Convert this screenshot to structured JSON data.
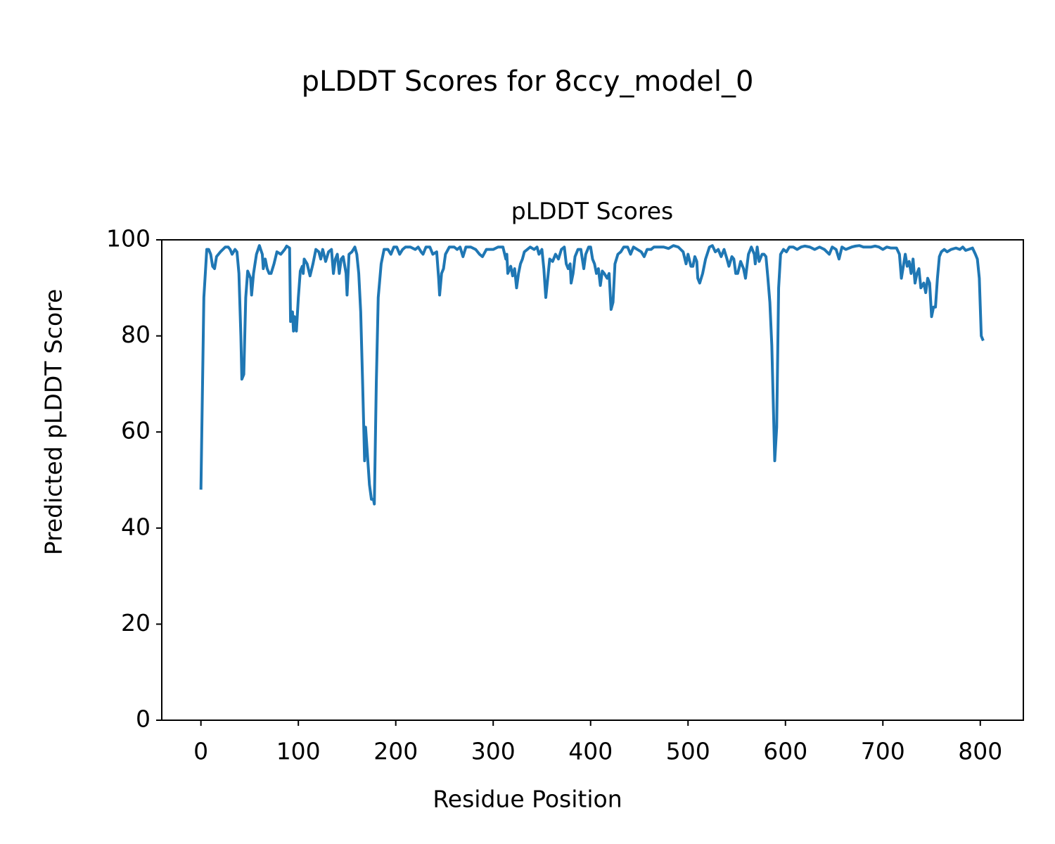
{
  "chart_data": {
    "type": "line",
    "title": "pLDDT Scores for 8ccy_model_0",
    "subtitle": "pLDDT Scores",
    "xlabel": "Residue Position",
    "ylabel": "Predicted pLDDT Score",
    "x": [
      0,
      3,
      6,
      8,
      10,
      12,
      14,
      16,
      20,
      25,
      28,
      30,
      32,
      35,
      37,
      39,
      41,
      42,
      44,
      46,
      48,
      51,
      52,
      54,
      57,
      60,
      63,
      64,
      66,
      68,
      70,
      72,
      75,
      78,
      82,
      86,
      88,
      91,
      92,
      94,
      95,
      96,
      98,
      100,
      102,
      104,
      105,
      106,
      109,
      112,
      115,
      118,
      121,
      123,
      125,
      128,
      131,
      134,
      136,
      138,
      140,
      142,
      144,
      146,
      149,
      150,
      152,
      155,
      158,
      160,
      162,
      164,
      166,
      168,
      169,
      171,
      173,
      175,
      177,
      178,
      180,
      182,
      185,
      188,
      192,
      195,
      198,
      201,
      204,
      207,
      210,
      215,
      220,
      223,
      226,
      228,
      231,
      235,
      238,
      242,
      244,
      245,
      247,
      249,
      251,
      255,
      260,
      263,
      266,
      269,
      272,
      277,
      282,
      286,
      289,
      293,
      300,
      305,
      310,
      313,
      314,
      315,
      318,
      320,
      322,
      324,
      326,
      328,
      330,
      332,
      335,
      338,
      342,
      345,
      347,
      350,
      352,
      354,
      356,
      358,
      361,
      364,
      367,
      370,
      373,
      375,
      377,
      379,
      380,
      382,
      384,
      387,
      390,
      393,
      395,
      398,
      400,
      402,
      404,
      406,
      408,
      410,
      412,
      414,
      417,
      419,
      421,
      423,
      425,
      428,
      431,
      434,
      438,
      441,
      444,
      448,
      452,
      455,
      458,
      462,
      465,
      470,
      475,
      480,
      485,
      490,
      495,
      498,
      500,
      503,
      505,
      507,
      509,
      510,
      512,
      515,
      518,
      522,
      525,
      528,
      531,
      534,
      537,
      540,
      542,
      545,
      547,
      549,
      551,
      554,
      557,
      559,
      562,
      565,
      568,
      569,
      571,
      573,
      576,
      578,
      580,
      582,
      584,
      586,
      588,
      589,
      591,
      593,
      595,
      598,
      601,
      604,
      608,
      612,
      616,
      620,
      625,
      630,
      635,
      640,
      645,
      648,
      652,
      655,
      658,
      662,
      668,
      672,
      676,
      680,
      684,
      688,
      692,
      696,
      700,
      704,
      708,
      714,
      717,
      719,
      721,
      723,
      725,
      727,
      729,
      731,
      733,
      735,
      737,
      739,
      742,
      744,
      746,
      748,
      750,
      752,
      754,
      756,
      758,
      760,
      763,
      766,
      770,
      775,
      779,
      782,
      785,
      788,
      792,
      795,
      797,
      799,
      801,
      803
    ],
    "series": [
      {
        "name": "pLDDT",
        "color": "#1f77b4",
        "values": [
          48,
          88,
          98,
          98,
          97,
          94.5,
          94,
          96.5,
          97.5,
          98.5,
          98.5,
          98,
          97,
          98,
          97.5,
          93,
          80,
          71,
          72,
          88,
          93.5,
          92,
          88.5,
          93,
          97,
          98.8,
          97,
          94,
          96,
          94,
          93,
          93,
          95,
          97.5,
          97,
          98,
          98.7,
          98.3,
          83,
          85,
          81,
          84,
          81,
          88,
          93.5,
          94.5,
          93,
          96,
          95,
          92.5,
          95,
          98,
          97.5,
          96,
          98,
          95.5,
          97.5,
          98,
          93,
          96,
          97,
          93,
          96,
          96.5,
          93,
          88.5,
          97,
          97.5,
          98.5,
          97,
          93,
          85,
          70,
          54,
          61,
          55,
          49,
          46,
          46,
          45,
          70,
          88,
          95,
          98,
          98,
          97,
          98.5,
          98.5,
          97,
          98,
          98.5,
          98.5,
          98,
          98.5,
          97.5,
          97,
          98.5,
          98.5,
          97,
          97.5,
          92,
          88.5,
          93,
          94,
          97,
          98.5,
          98.5,
          98,
          98.5,
          96.5,
          98.5,
          98.5,
          98,
          97,
          96.5,
          98,
          98,
          98.5,
          98.5,
          96,
          97,
          93,
          94.5,
          92.5,
          94,
          90,
          93,
          95,
          96,
          97.5,
          98,
          98.5,
          98,
          98.5,
          97,
          98,
          94,
          88,
          92,
          96,
          95.5,
          97,
          96,
          98,
          98.5,
          95,
          94,
          95,
          91,
          93,
          96.5,
          98,
          98,
          94,
          97,
          98.5,
          98.5,
          96,
          95,
          93,
          94,
          90.5,
          93.5,
          93,
          92,
          93,
          85.5,
          87,
          95,
          97,
          97.5,
          98.5,
          98.5,
          97,
          98.5,
          98,
          97.5,
          96.5,
          98,
          98,
          98.5,
          98.5,
          98.5,
          98.2,
          98.8,
          98.5,
          97.5,
          95,
          97,
          94.5,
          94.5,
          96.5,
          95.5,
          92,
          91,
          93,
          96,
          98.5,
          98.8,
          97.5,
          98,
          96.5,
          98,
          96,
          94.5,
          96.5,
          96,
          93,
          93,
          95.5,
          94,
          92,
          97,
          98.5,
          97,
          95,
          98.5,
          95.5,
          97,
          97,
          96.5,
          92,
          87,
          78,
          62,
          54,
          61,
          90,
          97,
          98,
          97.5,
          98.5,
          98.5,
          98,
          98.5,
          98.7,
          98.5,
          98,
          98.5,
          98,
          97,
          98.5,
          98,
          96,
          98.5,
          98,
          98.5,
          98.7,
          98.8,
          98.5,
          98.5,
          98.5,
          98.7,
          98.5,
          98,
          98.5,
          98.3,
          98.3,
          97,
          92,
          94.5,
          97,
          94.5,
          95.5,
          93,
          96,
          91,
          93,
          94,
          90,
          91,
          89,
          92,
          91,
          84,
          86,
          86,
          92,
          96.5,
          97.5,
          98,
          97.5,
          98,
          98.3,
          98,
          98.5,
          97.8,
          98,
          98.3,
          97,
          96,
          92,
          80,
          79
        ]
      }
    ],
    "xlim": [
      -40.2,
      844.2
    ],
    "xticks": [
      0,
      100,
      200,
      300,
      400,
      500,
      600,
      700,
      800
    ],
    "ylim": [
      0,
      100
    ],
    "yticks": [
      0,
      20,
      40,
      60,
      80,
      100
    ]
  }
}
